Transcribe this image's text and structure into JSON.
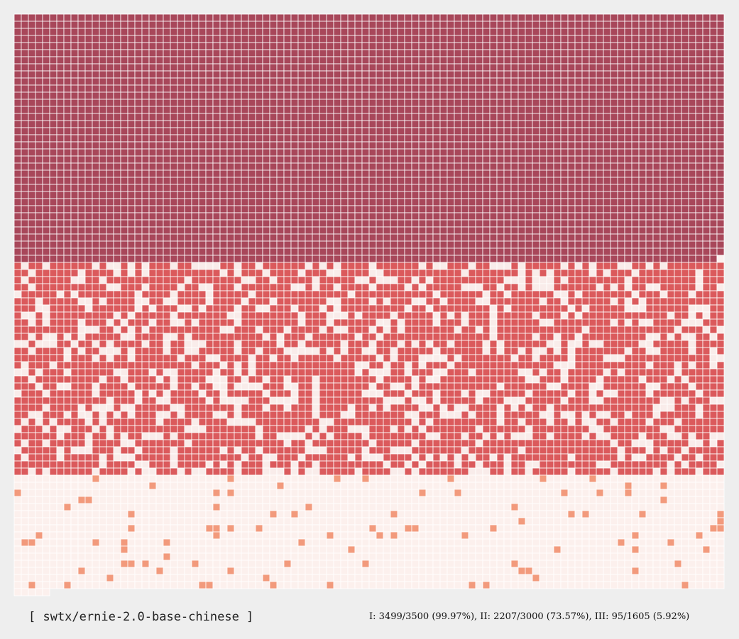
{
  "chart_data": {
    "type": "heatmap",
    "title": "",
    "xlabel": "",
    "ylabel": "",
    "columns": 100,
    "cell_value_meaning": "1 = correct, 0 = incorrect",
    "groups": [
      {
        "name": "I",
        "correct": 3499,
        "total": 3500,
        "percent": 99.97,
        "color_correct": "#a8475a",
        "color_incorrect": "#fbf0ee",
        "missed_cell_indices": [
          3499
        ]
      },
      {
        "name": "II",
        "correct": 2207,
        "total": 3000,
        "percent": 73.57,
        "color_correct": "#db5a5c",
        "color_incorrect": "#f9ecea"
      },
      {
        "name": "III",
        "correct": 95,
        "total": 1605,
        "percent": 5.92,
        "color_correct": "#f29a7c",
        "color_incorrect": "#fcf0ed"
      }
    ]
  },
  "colors": {
    "background": "#eeeeee",
    "cell_border": "#ffffff"
  },
  "footer": {
    "model_label": "[ swtx/ernie-2.0-base-chinese ]",
    "stats": "I: 3499/3500 (99.97%), II: 2207/3000 (73.57%), III: 95/1605 (5.92%)"
  }
}
